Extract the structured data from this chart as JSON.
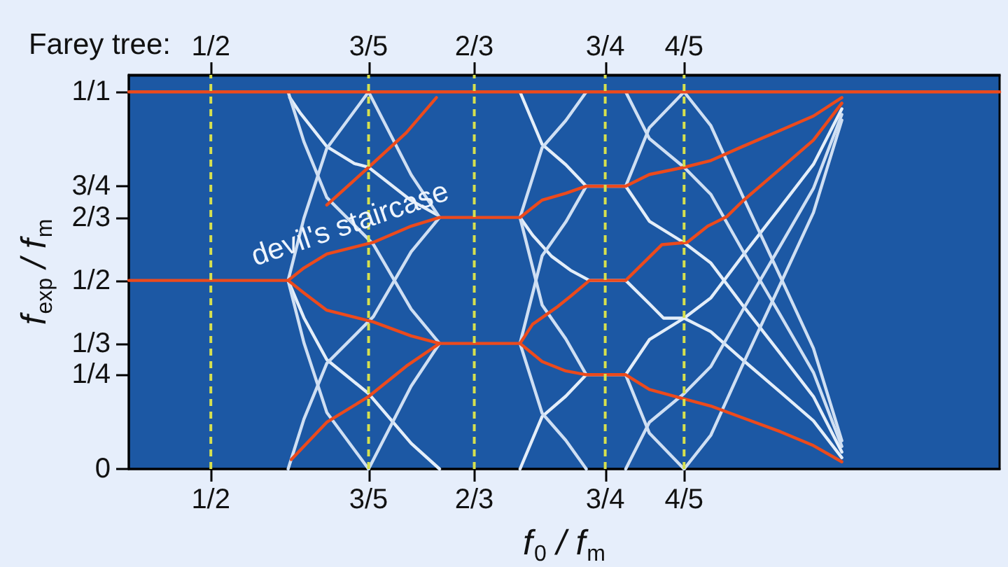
{
  "chart_data": {
    "type": "line",
    "xlabel": "f$_{0}$ / f$_{m}$",
    "ylabel": "f$_{exp}$ / f$_{m}$",
    "x2label": "Farey tree:",
    "xlim": [
      0.448,
      1.0
    ],
    "xticks": [
      {
        "value": 0.5,
        "label": "1/2"
      },
      {
        "value": 0.6,
        "label": "3/5"
      },
      {
        "value": 0.667,
        "label": "2/3"
      },
      {
        "value": 0.75,
        "label": "3/4"
      },
      {
        "value": 0.8,
        "label": "4/5"
      }
    ],
    "x2lim": [
      0.448,
      1.0
    ],
    "x2ticks": [
      {
        "value": 0.5,
        "label": "1/2"
      },
      {
        "value": 0.6,
        "label": "3/5"
      },
      {
        "value": 0.667,
        "label": "2/3"
      },
      {
        "value": 0.75,
        "label": "3/4"
      },
      {
        "value": 0.8,
        "label": "4/5"
      }
    ],
    "ylim": [
      0,
      1.045
    ],
    "yticks": [
      0,
      {
        "value": 0.25,
        "label": "1/4"
      },
      {
        "value": 0.333,
        "label": "1/3"
      },
      {
        "value": 0.5,
        "label": "1/2"
      },
      {
        "value": 0.667,
        "label": "2/3"
      },
      {
        "value": 0.75,
        "label": "3/4"
      },
      {
        "value": 1,
        "label": "1/1"
      }
    ],
    "series": [
      {
        "color": "#e4eef9",
        "x": [
          0.55,
          0.557,
          0.5735,
          0.591,
          0.6,
          0.627,
          0.643
        ],
        "values": [
          0.985,
          0.942,
          0.855,
          0.81,
          0.8,
          0.712,
          0.675
        ]
      },
      {
        "color": "#e4eef9",
        "x": [
          0.696,
          0.704,
          0.716,
          0.728,
          0.74,
          0.763,
          0.778,
          0.787,
          0.8,
          0.817,
          0.837,
          0.861,
          0.882,
          0.9
        ],
        "values": [
          0.667,
          0.62,
          0.564,
          0.527,
          0.5,
          0.5,
          0.438,
          0.4,
          0.4,
          0.364,
          0.29,
          0.204,
          0.128,
          0.03
        ]
      },
      {
        "color": "#e4eef9",
        "x": [
          0.549,
          0.559,
          0.5735,
          0.6,
          0.627,
          0.645
        ],
        "values": [
          0.5,
          0.401,
          0.29,
          0.2,
          0.068,
          0
        ]
      },
      {
        "color": "#e4eef9",
        "x": [
          0.696,
          0.71,
          0.725,
          0.738,
          0.763,
          0.778,
          0.8,
          0.817,
          0.837,
          0.861,
          0.882,
          0.9
        ],
        "values": [
          0,
          0.139,
          0.193,
          0.25,
          0.25,
          0.343,
          0.4,
          0.454,
          0.565,
          0.694,
          0.808,
          0.955
        ]
      },
      {
        "color": "#e4eef9",
        "x": [
          0.696,
          0.71,
          0.725,
          0.738,
          0.763,
          0.778,
          0.8,
          0.817,
          0.837,
          0.861,
          0.882,
          0.9
        ],
        "values": [
          1,
          0.861,
          0.807,
          0.75,
          0.75,
          0.657,
          0.6,
          0.546,
          0.435,
          0.306,
          0.192,
          0.045
        ]
      },
      {
        "color": "#cfdff3",
        "x": [
          0.549,
          0.559,
          0.5735,
          0.603,
          0.627,
          0.645
        ],
        "values": [
          0,
          0.132,
          0.28,
          0.404,
          0.576,
          0.667
        ]
      },
      {
        "color": "#cfdff3",
        "x": [
          0.549,
          0.559,
          0.5735,
          0.603,
          0.627,
          0.645
        ],
        "values": [
          1,
          0.868,
          0.72,
          0.596,
          0.424,
          0.333
        ]
      },
      {
        "color": "#cfdff3",
        "x": [
          0.696,
          0.71,
          0.725,
          0.738
        ],
        "values": [
          0.667,
          0.852,
          0.924,
          1
        ]
      },
      {
        "color": "#cfdff3",
        "x": [
          0.696,
          0.71,
          0.725,
          0.738
        ],
        "values": [
          0.333,
          0.148,
          0.076,
          0
        ]
      },
      {
        "color": "#cfdff3",
        "x": [
          0.763,
          0.778,
          0.8,
          0.817,
          0.837,
          0.861,
          0.882,
          0.9
        ],
        "values": [
          0,
          0.124,
          0.2,
          0.272,
          0.42,
          0.592,
          0.744,
          0.94
        ]
      },
      {
        "color": "#cfdff3",
        "x": [
          0.763,
          0.778,
          0.8,
          0.817,
          0.837,
          0.861,
          0.882,
          0.9
        ],
        "values": [
          1,
          0.876,
          0.8,
          0.728,
          0.58,
          0.408,
          0.256,
          0.06
        ]
      },
      {
        "color": "#cfdff3",
        "x": [
          0.549,
          0.559,
          0.5735,
          0.6
        ],
        "values": [
          0.5,
          0.665,
          0.85,
          1
        ]
      },
      {
        "color": "#cfdff3",
        "x": [
          0.549,
          0.559,
          0.5735,
          0.6
        ],
        "values": [
          0.5,
          0.335,
          0.15,
          0
        ]
      },
      {
        "color": "#cfdff3",
        "x": [
          0.6,
          0.627,
          0.645
        ],
        "values": [
          0,
          0.22,
          0.333
        ]
      },
      {
        "color": "#cfdff3",
        "x": [
          0.6,
          0.627,
          0.645
        ],
        "values": [
          1,
          0.78,
          0.667
        ]
      },
      {
        "color": "#cfdff3",
        "x": [
          0.696,
          0.71,
          0.725,
          0.738
        ],
        "values": [
          0.333,
          0.565,
          0.655,
          0.75
        ]
      },
      {
        "color": "#cfdff3",
        "x": [
          0.696,
          0.71,
          0.725,
          0.738
        ],
        "values": [
          0.667,
          0.435,
          0.345,
          0.25
        ]
      },
      {
        "color": "#cfdff3",
        "x": [
          0.763,
          0.778,
          0.8
        ],
        "values": [
          0.75,
          0.905,
          1
        ]
      },
      {
        "color": "#cfdff3",
        "x": [
          0.763,
          0.778,
          0.8
        ],
        "values": [
          0.25,
          0.095,
          0
        ]
      },
      {
        "color": "#cfdff3",
        "x": [
          0.8,
          0.817,
          0.837,
          0.861,
          0.882,
          0.9
        ],
        "values": [
          0,
          0.09,
          0.275,
          0.49,
          0.68,
          0.925
        ]
      },
      {
        "color": "#cfdff3",
        "x": [
          0.8,
          0.817,
          0.837,
          0.861,
          0.882,
          0.9
        ],
        "values": [
          1,
          0.91,
          0.725,
          0.51,
          0.32,
          0.075
        ]
      },
      {
        "color": "#ec4a1c",
        "x": [
          0.448,
          1.0
        ],
        "values": [
          1,
          1
        ]
      },
      {
        "color": "#ec4a1c",
        "x": [
          0.448,
          0.549,
          0.559,
          0.5735,
          0.603,
          0.627,
          0.645,
          0.696,
          0.71,
          0.725,
          0.738,
          0.763,
          0.778,
          0.8,
          0.817,
          0.837,
          0.861,
          0.882,
          0.9
        ],
        "values": [
          0.5,
          0.5,
          0.533,
          0.57,
          0.601,
          0.644,
          0.667,
          0.667,
          0.713,
          0.731,
          0.75,
          0.75,
          0.781,
          0.8,
          0.818,
          0.855,
          0.898,
          0.936,
          0.985
        ]
      },
      {
        "color": "#ec4a1c",
        "x": [
          0.549,
          0.559,
          0.5735,
          0.603,
          0.627,
          0.645,
          0.696,
          0.71,
          0.725,
          0.738,
          0.763,
          0.778,
          0.8,
          0.817,
          0.837,
          0.861,
          0.882,
          0.9
        ],
        "values": [
          0.5,
          0.467,
          0.421,
          0.39,
          0.353,
          0.333,
          0.333,
          0.285,
          0.26,
          0.25,
          0.25,
          0.211,
          0.186,
          0.167,
          0.136,
          0.099,
          0.062,
          0.019
        ]
      },
      {
        "color": "#ec4a1c",
        "x": [
          0.551,
          0.5735,
          0.6,
          0.624,
          0.645
        ],
        "values": [
          0.025,
          0.124,
          0.192,
          0.273,
          0.333
        ]
      },
      {
        "color": "#ec4a1c",
        "x": [
          0.5735,
          0.6,
          0.624,
          0.643
        ],
        "values": [
          0.7,
          0.8,
          0.892,
          0.985
        ]
      },
      {
        "color": "#ec4a1c",
        "x": [
          0.696,
          0.704,
          0.719,
          0.728,
          0.74,
          0.763,
          0.786,
          0.802,
          0.815,
          0.827,
          0.837,
          0.861,
          0.882,
          0.9
        ],
        "values": [
          0.333,
          0.384,
          0.428,
          0.458,
          0.5,
          0.5,
          0.595,
          0.601,
          0.644,
          0.669,
          0.71,
          0.796,
          0.872,
          0.97
        ]
      }
    ],
    "ref_lines": [
      {
        "axis": "x",
        "value": 0.5,
        "color": "#d6e04e",
        "line_style": "dashed"
      },
      {
        "axis": "x",
        "value": 0.6,
        "color": "#d6e04e",
        "line_style": "dashed"
      },
      {
        "axis": "x",
        "value": 0.667,
        "color": "#d6e04e",
        "line_style": "dashed"
      },
      {
        "axis": "x",
        "value": 0.75,
        "color": "#d6e04e",
        "line_style": "dashed"
      },
      {
        "axis": "x",
        "value": 0.8,
        "color": "#d6e04e",
        "line_style": "dashed"
      }
    ],
    "annotations": [
      "devil's staircase"
    ]
  }
}
